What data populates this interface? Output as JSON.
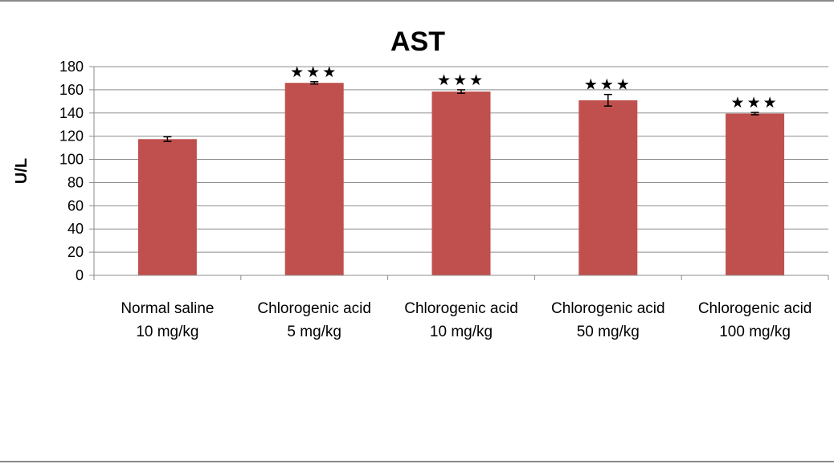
{
  "chart_data": {
    "type": "bar",
    "title": "AST",
    "ylabel": "U/L",
    "xlabel": "",
    "ylim": [
      0,
      180
    ],
    "yticks": [
      0,
      20,
      40,
      60,
      80,
      100,
      120,
      140,
      160,
      180
    ],
    "grid": true,
    "categories": [
      [
        "Normal saline",
        "10 mg/kg"
      ],
      [
        "Chlorogenic acid",
        "5 mg/kg"
      ],
      [
        "Chlorogenic acid",
        "10 mg/kg"
      ],
      [
        "Chlorogenic acid",
        "50 mg/kg"
      ],
      [
        "Chlorogenic acid",
        "100 mg/kg"
      ]
    ],
    "values": [
      117.5,
      166,
      158.5,
      151,
      139.5
    ],
    "error": [
      2,
      1,
      1.5,
      5,
      1
    ],
    "significance": [
      "",
      "★★★",
      "★★★",
      "★★★",
      "★★★"
    ],
    "bar_color": "#c0504d",
    "grid_color": "#8c8c8c"
  }
}
